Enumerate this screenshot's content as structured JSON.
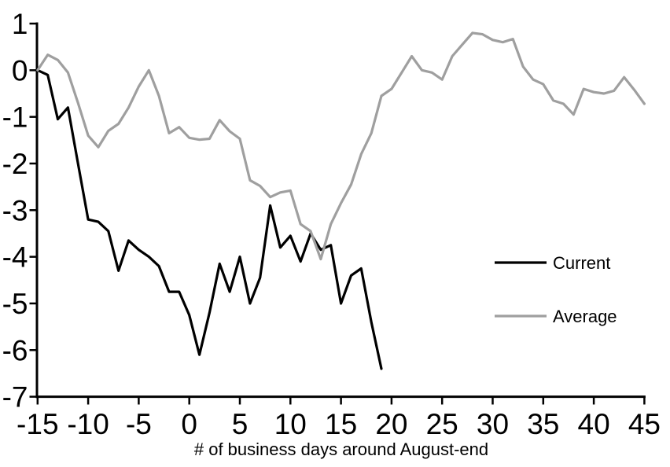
{
  "chart_data": {
    "type": "line",
    "title": "",
    "xlabel": "# of business days around August-end",
    "ylabel": "",
    "xlim": [
      -15,
      45
    ],
    "ylim": [
      -7,
      1
    ],
    "x_ticks": [
      -15,
      -10,
      -5,
      0,
      5,
      10,
      15,
      20,
      25,
      30,
      35,
      40,
      45
    ],
    "y_ticks": [
      1,
      0,
      -1,
      -2,
      -3,
      -4,
      -5,
      -6,
      -7
    ],
    "grid": false,
    "legend_position": "center-right",
    "series": [
      {
        "name": "Current",
        "color": "#000000",
        "x": [
          -15,
          -14,
          -13,
          -12,
          -11,
          -10,
          -9,
          -8,
          -7,
          -6,
          -5,
          -4,
          -3,
          -2,
          -1,
          0,
          1,
          2,
          3,
          4,
          5,
          6,
          7,
          8,
          9,
          10,
          11,
          12,
          13,
          14,
          15,
          16,
          17,
          18,
          19
        ],
        "values": [
          0,
          -0.1,
          -1.05,
          -0.8,
          -2.0,
          -3.2,
          -3.25,
          -3.45,
          -4.3,
          -3.65,
          -3.85,
          -4.0,
          -4.2,
          -4.75,
          -4.75,
          -5.25,
          -6.1,
          -5.2,
          -4.15,
          -4.75,
          -4.0,
          -5.0,
          -4.45,
          -2.9,
          -3.8,
          -3.55,
          -4.1,
          -3.5,
          -3.85,
          -3.75,
          -5.0,
          -4.4,
          -4.25,
          -5.4,
          -6.4
        ]
      },
      {
        "name": "Average",
        "color": "#9f9f9f",
        "x": [
          -15,
          -14,
          -13,
          -12,
          -11,
          -10,
          -9,
          -8,
          -7,
          -6,
          -5,
          -4,
          -3,
          -2,
          -1,
          0,
          1,
          2,
          3,
          4,
          5,
          6,
          7,
          8,
          9,
          10,
          11,
          12,
          13,
          14,
          15,
          16,
          17,
          18,
          19,
          20,
          21,
          22,
          23,
          24,
          25,
          26,
          27,
          28,
          29,
          30,
          31,
          32,
          33,
          34,
          35,
          36,
          37,
          38,
          39,
          40,
          41,
          42,
          43,
          44,
          45
        ],
        "values": [
          0,
          0.33,
          0.22,
          -0.05,
          -0.7,
          -1.4,
          -1.65,
          -1.3,
          -1.15,
          -0.8,
          -0.35,
          0,
          -0.55,
          -1.35,
          -1.22,
          -1.45,
          -1.49,
          -1.47,
          -1.07,
          -1.31,
          -1.47,
          -2.36,
          -2.48,
          -2.72,
          -2.62,
          -2.58,
          -3.3,
          -3.45,
          -4.05,
          -3.3,
          -2.85,
          -2.45,
          -1.8,
          -1.35,
          -0.55,
          -0.4,
          -0.05,
          0.3,
          0,
          -0.05,
          -0.2,
          0.3,
          0.55,
          0.8,
          0.77,
          0.65,
          0.6,
          0.67,
          0.08,
          -0.2,
          -0.3,
          -0.65,
          -0.72,
          -0.95,
          -0.4,
          -0.47,
          -0.5,
          -0.44,
          -0.15,
          -0.42,
          -0.72
        ]
      }
    ]
  }
}
